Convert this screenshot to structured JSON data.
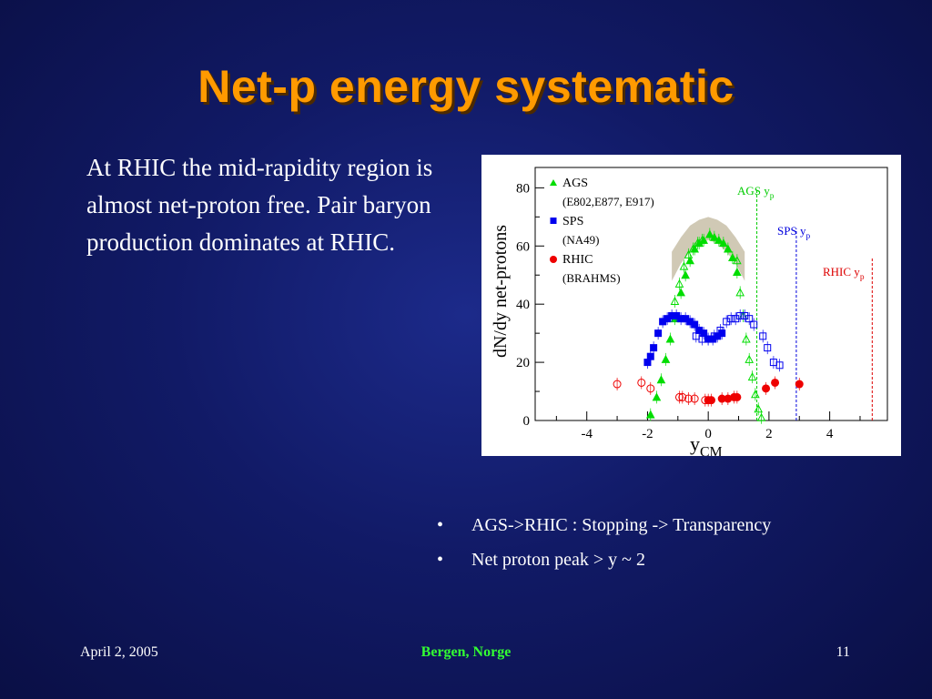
{
  "slide": {
    "title": "Net-p energy systematic",
    "intro": "At RHIC the mid-rapidity region is almost net-proton free. Pair baryon production dominates at RHIC.",
    "bullets": [
      "AGS->RHIC : Stopping -> Transparency",
      "Net proton peak >  y ~ 2"
    ],
    "footer": {
      "date": "April 2, 2005",
      "location": "Bergen, Norge",
      "page": "11"
    }
  },
  "chart_data": {
    "type": "scatter",
    "xlabel": "y",
    "xlabel_sub": "CM",
    "ylabel": "dN/dy net-protons",
    "xlim": [
      -5.7,
      5.9
    ],
    "ylim": [
      0,
      87
    ],
    "xticks": [
      -4,
      -2,
      0,
      2,
      4
    ],
    "yticks": [
      0,
      20,
      40,
      60,
      80
    ],
    "legend": [
      {
        "name": "AGS",
        "detail": "(E802,E877, E917)",
        "color": "#00dd00",
        "marker": "triangle"
      },
      {
        "name": "SPS",
        "detail": "(NA49)",
        "color": "#0000ee",
        "marker": "square"
      },
      {
        "name": "RHIC",
        "detail": "(BRAHMS)",
        "color": "#ee0000",
        "marker": "circle"
      }
    ],
    "beam_lines": [
      {
        "label": "AGS y",
        "sub": "p",
        "x": 1.6,
        "color": "#00cc00"
      },
      {
        "label": "SPS y",
        "sub": "p",
        "x": 2.9,
        "color": "#0000dd"
      },
      {
        "label": "RHIC y",
        "sub": "p",
        "x": 5.4,
        "color": "#dd0000"
      }
    ],
    "band": {
      "x": [
        -1.2,
        -0.9,
        -0.6,
        -0.3,
        0.0,
        0.3,
        0.6,
        0.9,
        1.2
      ],
      "lower": [
        48,
        54,
        58,
        61,
        62,
        61,
        58,
        54,
        48
      ],
      "upper": [
        58,
        63,
        67,
        69,
        70,
        69,
        67,
        63,
        58
      ]
    },
    "series": [
      {
        "name": "AGS",
        "color": "#00dd00",
        "marker": "triangle",
        "filled": true,
        "points": [
          [
            -1.9,
            2
          ],
          [
            -1.7,
            8
          ],
          [
            -1.55,
            14
          ],
          [
            -1.4,
            21
          ],
          [
            -1.25,
            28
          ],
          [
            -1.1,
            35
          ],
          [
            -0.9,
            44
          ],
          [
            -0.75,
            50
          ],
          [
            -0.6,
            55
          ],
          [
            -0.45,
            59
          ],
          [
            -0.3,
            61
          ],
          [
            -0.15,
            62
          ],
          [
            0.05,
            64
          ],
          [
            0.2,
            63
          ],
          [
            0.35,
            62
          ],
          [
            0.5,
            61
          ],
          [
            0.65,
            59
          ],
          [
            0.8,
            56
          ],
          [
            0.95,
            51
          ]
        ]
      },
      {
        "name": "AGS",
        "color": "#00dd00",
        "marker": "triangle",
        "filled": false,
        "points": [
          [
            -1.1,
            41
          ],
          [
            -0.95,
            47
          ],
          [
            -0.8,
            53
          ],
          [
            -0.65,
            57
          ],
          [
            -0.5,
            59
          ],
          [
            -0.35,
            61
          ],
          [
            -0.2,
            62
          ],
          [
            0.95,
            55
          ],
          [
            1.05,
            44
          ],
          [
            1.15,
            36
          ],
          [
            1.25,
            28
          ],
          [
            1.35,
            21
          ],
          [
            1.45,
            15
          ],
          [
            1.55,
            9
          ],
          [
            1.65,
            4
          ],
          [
            1.75,
            1
          ]
        ]
      },
      {
        "name": "SPS",
        "color": "#0000ee",
        "marker": "square",
        "filled": true,
        "points": [
          [
            -2.0,
            20
          ],
          [
            -1.9,
            22
          ],
          [
            -1.8,
            25
          ],
          [
            -1.65,
            30
          ],
          [
            -1.5,
            34
          ],
          [
            -1.35,
            35
          ],
          [
            -1.2,
            36
          ],
          [
            -1.05,
            36
          ],
          [
            -0.9,
            35
          ],
          [
            -0.75,
            35
          ],
          [
            -0.6,
            34
          ],
          [
            -0.45,
            33
          ],
          [
            -0.3,
            31
          ],
          [
            -0.15,
            30
          ],
          [
            0.0,
            28
          ],
          [
            0.15,
            28
          ],
          [
            0.3,
            29
          ],
          [
            0.45,
            30
          ]
        ]
      },
      {
        "name": "SPS",
        "color": "#0000ee",
        "marker": "square",
        "filled": false,
        "points": [
          [
            -0.4,
            29
          ],
          [
            -0.2,
            28
          ],
          [
            0.0,
            28
          ],
          [
            0.2,
            29
          ],
          [
            0.4,
            31
          ],
          [
            0.6,
            34
          ],
          [
            0.75,
            35
          ],
          [
            0.9,
            35
          ],
          [
            1.05,
            36
          ],
          [
            1.2,
            36
          ],
          [
            1.35,
            35
          ],
          [
            1.5,
            33
          ],
          [
            1.8,
            29
          ],
          [
            1.95,
            25
          ],
          [
            2.15,
            20
          ],
          [
            2.35,
            19
          ]
        ]
      },
      {
        "name": "RHIC",
        "color": "#ee0000",
        "marker": "circle",
        "filled": true,
        "points": [
          [
            0.0,
            7
          ],
          [
            0.1,
            7
          ],
          [
            0.45,
            7.5
          ],
          [
            0.65,
            7.5
          ],
          [
            0.85,
            8
          ],
          [
            0.95,
            8
          ],
          [
            1.9,
            11
          ],
          [
            2.2,
            13
          ],
          [
            3.0,
            12.5
          ]
        ]
      },
      {
        "name": "RHIC",
        "color": "#ee0000",
        "marker": "circle",
        "filled": false,
        "points": [
          [
            -3.0,
            12.5
          ],
          [
            -2.2,
            13
          ],
          [
            -1.9,
            11
          ],
          [
            -0.95,
            8
          ],
          [
            -0.85,
            8
          ],
          [
            -0.65,
            7.5
          ],
          [
            -0.45,
            7.5
          ],
          [
            -0.1,
            7
          ]
        ]
      }
    ]
  }
}
